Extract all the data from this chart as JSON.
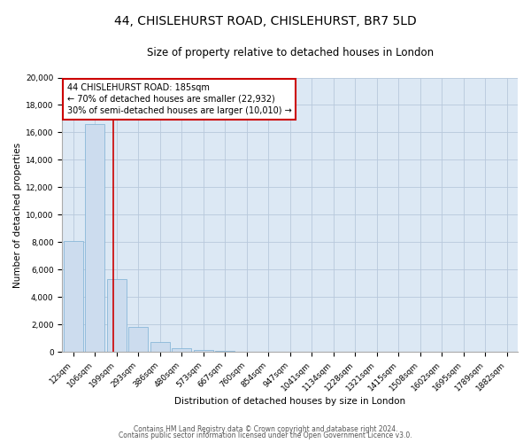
{
  "title": "44, CHISLEHURST ROAD, CHISLEHURST, BR7 5LD",
  "subtitle": "Size of property relative to detached houses in London",
  "xlabel": "Distribution of detached houses by size in London",
  "ylabel": "Number of detached properties",
  "bar_labels": [
    "12sqm",
    "106sqm",
    "199sqm",
    "293sqm",
    "386sqm",
    "480sqm",
    "573sqm",
    "667sqm",
    "760sqm",
    "854sqm",
    "947sqm",
    "1041sqm",
    "1134sqm",
    "1228sqm",
    "1321sqm",
    "1415sqm",
    "1508sqm",
    "1602sqm",
    "1695sqm",
    "1789sqm",
    "1882sqm"
  ],
  "bar_values": [
    8100,
    16600,
    5300,
    1850,
    750,
    280,
    150,
    90,
    0,
    0,
    0,
    0,
    0,
    0,
    0,
    0,
    0,
    0,
    0,
    0,
    0
  ],
  "bar_color": "#ccdcee",
  "bar_edge_color": "#7aafd4",
  "vline_color": "#cc0000",
  "ylim": [
    0,
    20000
  ],
  "yticks": [
    0,
    2000,
    4000,
    6000,
    8000,
    10000,
    12000,
    14000,
    16000,
    18000,
    20000
  ],
  "annotation_title": "44 CHISLEHURST ROAD: 185sqm",
  "annotation_line1": "← 70% of detached houses are smaller (22,932)",
  "annotation_line2": "30% of semi-detached houses are larger (10,010) →",
  "annotation_box_color": "#ffffff",
  "annotation_box_edge": "#cc0000",
  "footer1": "Contains HM Land Registry data © Crown copyright and database right 2024.",
  "footer2": "Contains public sector information licensed under the Open Government Licence v3.0.",
  "plot_bg_color": "#dce8f4",
  "background_color": "#ffffff",
  "grid_color": "#b8c8dc",
  "title_fontsize": 10,
  "subtitle_fontsize": 8.5,
  "axis_label_fontsize": 7.5,
  "tick_fontsize": 6.5,
  "annotation_fontsize": 7,
  "footer_fontsize": 5.5
}
